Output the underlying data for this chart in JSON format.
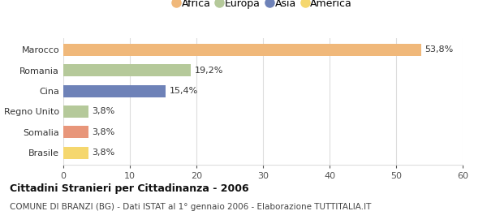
{
  "categories": [
    "Brasile",
    "Somalia",
    "Regno Unito",
    "Cina",
    "Romania",
    "Marocco"
  ],
  "values": [
    3.8,
    3.8,
    3.8,
    15.4,
    19.2,
    53.8
  ],
  "labels": [
    "3,8%",
    "3,8%",
    "3,8%",
    "15,4%",
    "19,2%",
    "53,8%"
  ],
  "bar_colors": [
    "#f5d76e",
    "#e8967a",
    "#b5c99a",
    "#6e82b8",
    "#b5c99a",
    "#f0b87a"
  ],
  "legend_items": [
    {
      "label": "Africa",
      "color": "#f0b87a"
    },
    {
      "label": "Europa",
      "color": "#b5c99a"
    },
    {
      "label": "Asia",
      "color": "#6e82b8"
    },
    {
      "label": "America",
      "color": "#f5d76e"
    }
  ],
  "xlim": [
    0,
    60
  ],
  "xticks": [
    0,
    10,
    20,
    30,
    40,
    50,
    60
  ],
  "title": "Cittadini Stranieri per Cittadinanza - 2006",
  "subtitle": "COMUNE DI BRANZI (BG) - Dati ISTAT al 1° gennaio 2006 - Elaborazione TUTTITALIA.IT",
  "background_color": "#ffffff",
  "grid_color": "#dddddd"
}
